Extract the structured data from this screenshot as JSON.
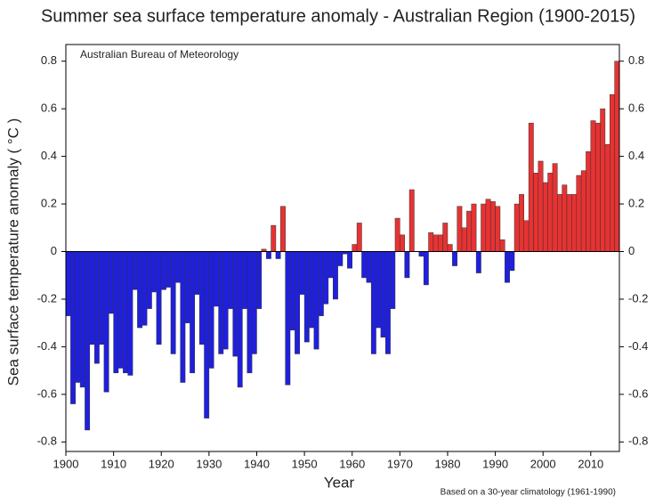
{
  "chart_data": {
    "type": "bar",
    "title": "Summer sea surface temperature anomaly - Australian Region (1900-2015)",
    "annotation": "Australian Bureau of Meteorology",
    "footnote": "Based on a 30-year climatology (1961-1990)",
    "xlabel": "Year",
    "ylabel": "Sea surface temperature anomaly ( °C )",
    "x": [
      1900,
      1901,
      1902,
      1903,
      1904,
      1905,
      1906,
      1907,
      1908,
      1909,
      1910,
      1911,
      1912,
      1913,
      1914,
      1915,
      1916,
      1917,
      1918,
      1919,
      1920,
      1921,
      1922,
      1923,
      1924,
      1925,
      1926,
      1927,
      1928,
      1929,
      1930,
      1931,
      1932,
      1933,
      1934,
      1935,
      1936,
      1937,
      1938,
      1939,
      1940,
      1941,
      1942,
      1943,
      1944,
      1945,
      1946,
      1947,
      1948,
      1949,
      1950,
      1951,
      1952,
      1953,
      1954,
      1955,
      1956,
      1957,
      1958,
      1959,
      1960,
      1961,
      1962,
      1963,
      1964,
      1965,
      1966,
      1967,
      1968,
      1969,
      1970,
      1971,
      1972,
      1973,
      1974,
      1975,
      1976,
      1977,
      1978,
      1979,
      1980,
      1981,
      1982,
      1983,
      1984,
      1985,
      1986,
      1987,
      1988,
      1989,
      1990,
      1991,
      1992,
      1993,
      1994,
      1995,
      1996,
      1997,
      1998,
      1999,
      2000,
      2001,
      2002,
      2003,
      2004,
      2005,
      2006,
      2007,
      2008,
      2009,
      2010,
      2011,
      2012,
      2013,
      2014,
      2015
    ],
    "values": [
      -0.27,
      -0.64,
      -0.55,
      -0.57,
      -0.75,
      -0.39,
      -0.47,
      -0.39,
      -0.59,
      -0.26,
      -0.51,
      -0.49,
      -0.51,
      -0.52,
      -0.16,
      -0.32,
      -0.31,
      -0.24,
      -0.17,
      -0.39,
      -0.16,
      -0.15,
      -0.43,
      -0.13,
      -0.55,
      -0.3,
      -0.51,
      -0.18,
      -0.39,
      -0.7,
      -0.49,
      -0.23,
      -0.43,
      -0.41,
      -0.24,
      -0.44,
      -0.57,
      -0.24,
      -0.51,
      -0.43,
      -0.24,
      0.01,
      -0.03,
      0.11,
      -0.03,
      0.19,
      -0.56,
      -0.33,
      -0.43,
      -0.18,
      -0.38,
      -0.32,
      -0.41,
      -0.27,
      -0.22,
      -0.11,
      -0.2,
      -0.06,
      -0.01,
      -0.07,
      0.03,
      0.12,
      -0.11,
      -0.13,
      -0.43,
      -0.32,
      -0.36,
      -0.43,
      -0.24,
      0.14,
      0.07,
      -0.11,
      0.26,
      0.0,
      -0.02,
      -0.14,
      0.08,
      0.07,
      0.07,
      0.12,
      0.03,
      -0.06,
      0.19,
      0.1,
      0.17,
      0.2,
      -0.09,
      0.2,
      0.22,
      0.21,
      0.19,
      0.05,
      -0.13,
      -0.08,
      0.2,
      0.24,
      0.13,
      0.54,
      0.33,
      0.38,
      0.29,
      0.33,
      0.37,
      0.24,
      0.28,
      0.24,
      0.24,
      0.32,
      0.34,
      0.42,
      0.55,
      0.54,
      0.6,
      0.45,
      0.66,
      0.8
    ],
    "positive_color": "#e83232",
    "negative_color": "#1f1fe0",
    "xlim": [
      1900,
      2016
    ],
    "xticks": [
      1900,
      1910,
      1920,
      1930,
      1940,
      1950,
      1960,
      1970,
      1980,
      1990,
      2000,
      2010
    ],
    "ylim": [
      -0.84,
      0.87
    ],
    "yticks": [
      -0.8,
      -0.6,
      -0.4,
      -0.2,
      0,
      0.2,
      0.4,
      0.6,
      0.8
    ]
  }
}
